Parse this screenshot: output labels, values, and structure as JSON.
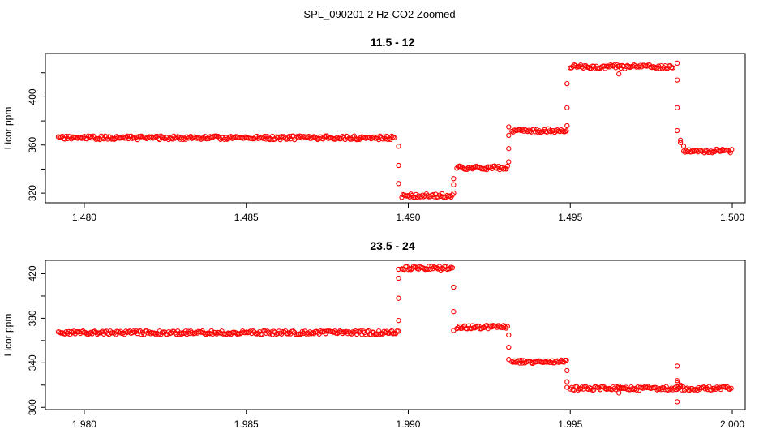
{
  "figure": {
    "title": "SPL_090201  2 Hz CO2 Zoomed"
  },
  "colors": {
    "points": "#ff0000",
    "axes": "#000000",
    "background": "#ffffff"
  },
  "chart_data": [
    {
      "type": "scatter",
      "title": "11.5 - 12",
      "xlabel": "",
      "ylabel": "Licor ppm",
      "xlim": [
        1.4788,
        1.5004
      ],
      "ylim": [
        312,
        436
      ],
      "xticks": [
        1.48,
        1.485,
        1.49,
        1.495,
        1.5
      ],
      "xtick_labels": [
        "1.480",
        "1.485",
        "1.490",
        "1.495",
        "1.500"
      ],
      "yticks": [
        320,
        340,
        360,
        380,
        400,
        420
      ],
      "ytick_labels": [
        "320",
        "",
        "360",
        "",
        "400",
        ""
      ],
      "levels": [
        {
          "x_start": 1.4792,
          "x_end": 1.4896,
          "y": 366
        },
        {
          "x_start": 1.4898,
          "x_end": 1.4914,
          "y": 318
        },
        {
          "x_start": 1.4915,
          "x_end": 1.4931,
          "y": 341
        },
        {
          "x_start": 1.4932,
          "x_end": 1.4949,
          "y": 372
        },
        {
          "x_start": 1.495,
          "x_end": 1.4982,
          "y": 425
        },
        {
          "x_start": 1.4985,
          "x_end": 1.5,
          "y": 355
        }
      ],
      "transition_points": [
        [
          1.4897,
          359
        ],
        [
          1.4897,
          343
        ],
        [
          1.4897,
          328
        ],
        [
          1.4914,
          320
        ],
        [
          1.4914,
          327
        ],
        [
          1.4914,
          332
        ],
        [
          1.4931,
          346
        ],
        [
          1.4931,
          357
        ],
        [
          1.4931,
          368
        ],
        [
          1.4931,
          375
        ],
        [
          1.4949,
          376
        ],
        [
          1.4949,
          391
        ],
        [
          1.4949,
          411
        ],
        [
          1.4965,
          419
        ],
        [
          1.4983,
          428
        ],
        [
          1.4983,
          414
        ],
        [
          1.4983,
          391
        ],
        [
          1.4983,
          372
        ],
        [
          1.4984,
          364
        ],
        [
          1.4984,
          362
        ],
        [
          1.4985,
          359
        ]
      ]
    },
    {
      "type": "scatter",
      "title": "23.5 - 24",
      "xlabel": "",
      "ylabel": "Licor ppm",
      "xlim": [
        1.9788,
        2.0004
      ],
      "ylim": [
        298,
        432
      ],
      "xticks": [
        1.98,
        1.985,
        1.99,
        1.995,
        2.0
      ],
      "xtick_labels": [
        "1.980",
        "1.985",
        "1.990",
        "1.995",
        "2.000"
      ],
      "yticks": [
        300,
        320,
        340,
        360,
        380,
        400,
        420
      ],
      "ytick_labels": [
        "300",
        "",
        "340",
        "",
        "380",
        "",
        "420"
      ],
      "levels": [
        {
          "x_start": 1.9792,
          "x_end": 1.9897,
          "y": 367
        },
        {
          "x_start": 1.9898,
          "x_end": 1.9914,
          "y": 425
        },
        {
          "x_start": 1.9915,
          "x_end": 1.9931,
          "y": 372
        },
        {
          "x_start": 1.9932,
          "x_end": 1.9949,
          "y": 341
        },
        {
          "x_start": 1.995,
          "x_end": 2.0,
          "y": 317
        }
      ],
      "transition_points": [
        [
          1.9897,
          378
        ],
        [
          1.9897,
          398
        ],
        [
          1.9897,
          416
        ],
        [
          1.9897,
          424
        ],
        [
          1.9914,
          408
        ],
        [
          1.9914,
          386
        ],
        [
          1.9914,
          369
        ],
        [
          1.9931,
          365
        ],
        [
          1.9931,
          354
        ],
        [
          1.9931,
          343
        ],
        [
          1.9949,
          333
        ],
        [
          1.9949,
          323
        ],
        [
          1.9949,
          318
        ],
        [
          1.9965,
          313
        ],
        [
          1.9965,
          319
        ],
        [
          1.9983,
          305
        ],
        [
          1.9983,
          337
        ],
        [
          1.9983,
          324
        ],
        [
          1.9983,
          322
        ],
        [
          1.9984,
          320
        ]
      ]
    }
  ]
}
